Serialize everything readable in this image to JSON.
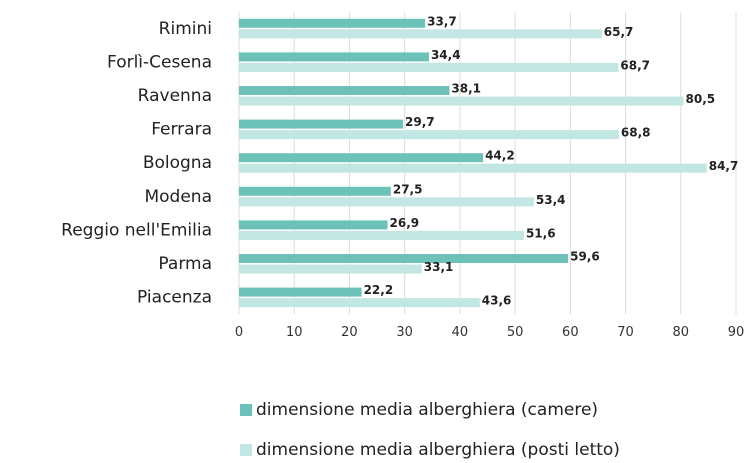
{
  "chart_data": {
    "type": "bar",
    "orientation": "horizontal",
    "categories": [
      "Rimini",
      "Forlì-Cesena",
      "Ravenna",
      "Ferrara",
      "Bologna",
      "Modena",
      "Reggio nell'Emilia",
      "Parma",
      "Piacenza"
    ],
    "series": [
      {
        "name": "dimensione media alberghiera (camere)",
        "color": "#6cc2b9",
        "values": [
          33.7,
          34.4,
          38.1,
          29.7,
          44.2,
          27.5,
          26.9,
          59.6,
          22.2
        ],
        "value_labels": [
          "33,7",
          "34,4",
          "38,1",
          "29,7",
          "44,2",
          "27,5",
          "26,9",
          "59,6",
          "22,2"
        ]
      },
      {
        "name": "dimensione media alberghiera (posti letto)",
        "color": "#c2e6e1",
        "values": [
          65.7,
          68.7,
          80.5,
          68.8,
          84.7,
          53.4,
          51.6,
          33.1,
          43.6
        ],
        "value_labels": [
          "65,7",
          "68,7",
          "80,5",
          "68,8",
          "84,7",
          "53,4",
          "51,6",
          "33,1",
          "43,6"
        ]
      }
    ],
    "xlim": [
      0,
      90
    ],
    "xticks": [
      0,
      10,
      20,
      30,
      40,
      50,
      60,
      70,
      80,
      90
    ],
    "grid": true,
    "legend": "bottom"
  }
}
